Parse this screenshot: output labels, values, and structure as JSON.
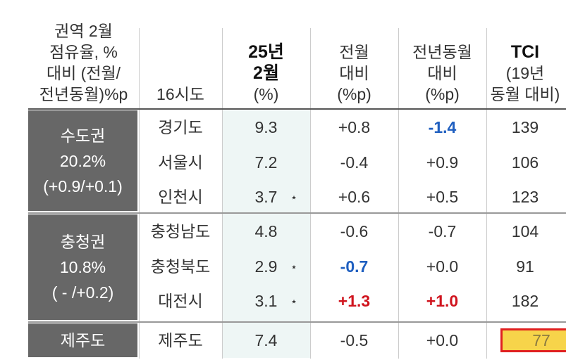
{
  "header": {
    "region": [
      "권역 2월",
      "점유율, %",
      "대비 (전월/",
      "전년동월)%p"
    ],
    "province": [
      "16시도"
    ],
    "share": [
      "25년",
      "2월",
      "(%)"
    ],
    "mom": [
      "전월",
      "대비",
      "(%p)"
    ],
    "yoy": [
      "전년동월",
      "대비",
      "(%p)"
    ],
    "tci": [
      "TCI",
      "(19년",
      "동월 대비)"
    ]
  },
  "groups": [
    {
      "name": "수도권",
      "share": "20.2%",
      "change": "(+0.9/+0.1)",
      "rows": [
        {
          "province": "경기도",
          "share": "9.3",
          "mom": "+0.8",
          "yoy": "-1.4",
          "tci": "139",
          "yoy_style": "blue"
        },
        {
          "province": "서울시",
          "share": "7.2",
          "mom": "-0.4",
          "yoy": "+0.9",
          "tci": "106"
        },
        {
          "province": "인천시",
          "share": "3.7",
          "star": "⋆",
          "mom": "+0.6",
          "yoy": "+0.5",
          "tci": "123"
        }
      ]
    },
    {
      "name": "충청권",
      "share": "10.8%",
      "change": "( - /+0.2)",
      "rows": [
        {
          "province": "충청남도",
          "share": "4.8",
          "mom": "-0.6",
          "yoy": "-0.7",
          "tci": "104"
        },
        {
          "province": "충청북도",
          "share": "2.9",
          "star": "⋆",
          "mom": "-0.7",
          "yoy": "+0.0",
          "tci": "91",
          "mom_style": "blue"
        },
        {
          "province": "대전시",
          "share": "3.1",
          "star": "⋆",
          "mom": "+1.3",
          "yoy": "+1.0",
          "tci": "182",
          "mom_style": "red",
          "yoy_style": "red"
        }
      ]
    },
    {
      "name": "제주도",
      "rows": [
        {
          "province": "제주도",
          "share": "7.4",
          "mom": "-0.5",
          "yoy": "+0.0",
          "tci": "77",
          "tci_style": "highlight"
        }
      ]
    }
  ]
}
